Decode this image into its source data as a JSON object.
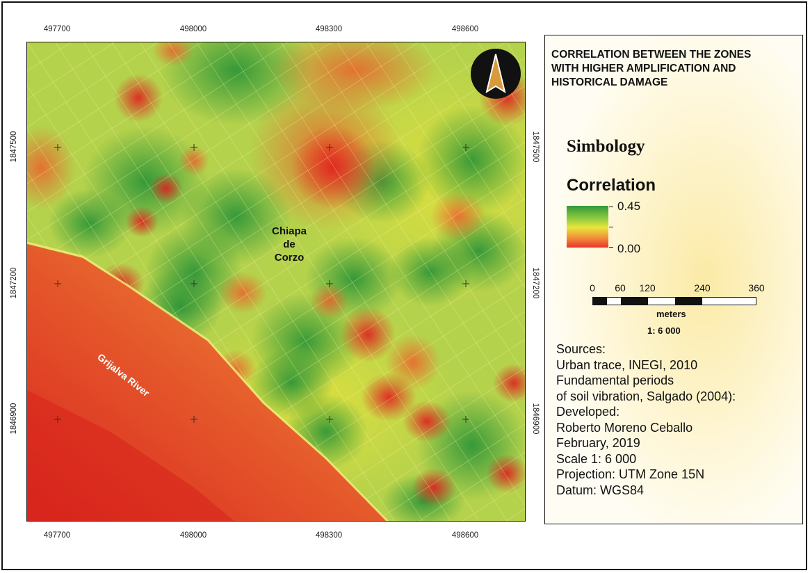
{
  "map": {
    "place_label": [
      "Chiapa",
      "de",
      "Corzo"
    ],
    "river_label": "Grijalva River",
    "x_ticks": [
      "497700",
      "498000",
      "498300",
      "498600"
    ],
    "y_ticks": [
      "1847500",
      "1847200",
      "1846900"
    ],
    "north_arrow_icon": "north-arrow-icon"
  },
  "legend": {
    "title_lines": [
      "CORRELATION BETWEEN THE ZONES",
      "WITH HIGHER AMPLIFICATION AND",
      "HISTORICAL DAMAGE"
    ],
    "symbology": "Simbology",
    "correlation": "Correlation",
    "max": "0.45",
    "min": "0.00",
    "ramp_colors": [
      "#2f9a3a",
      "#8fcb3f",
      "#e8e63a",
      "#f28a3a",
      "#e8342a"
    ],
    "scale_labels": [
      "0",
      "60",
      "120",
      "240",
      "360"
    ],
    "scale_units": "meters",
    "scale_ratio": "1: 6 000",
    "sources": [
      "Sources:",
      "Urban trace, INEGI, 2010",
      "Fundamental periods",
      "of soil vibration, Salgado (2004):",
      "Developed:",
      "Roberto Moreno Ceballo",
      "February, 2019",
      "Scale 1: 6 000",
      "Projection: UTM Zone 15N",
      "Datum: WGS84"
    ]
  }
}
